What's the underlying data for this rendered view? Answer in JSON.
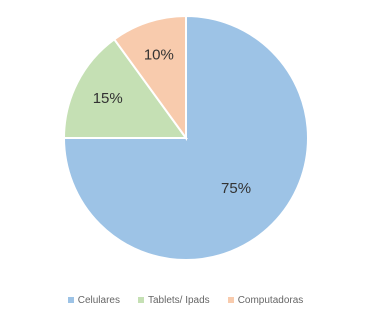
{
  "chart_data": {
    "type": "pie",
    "categories": [
      "Celulares",
      "Tablets/ Ipads",
      "Computadoras"
    ],
    "values": [
      75,
      15,
      10
    ],
    "labels": [
      "75%",
      "15%",
      "10%"
    ],
    "colors": [
      "#9dc3e6",
      "#c5e0b4",
      "#f8cbad"
    ],
    "start_angle_deg": 0,
    "direction": "clockwise",
    "legend_position": "bottom"
  }
}
